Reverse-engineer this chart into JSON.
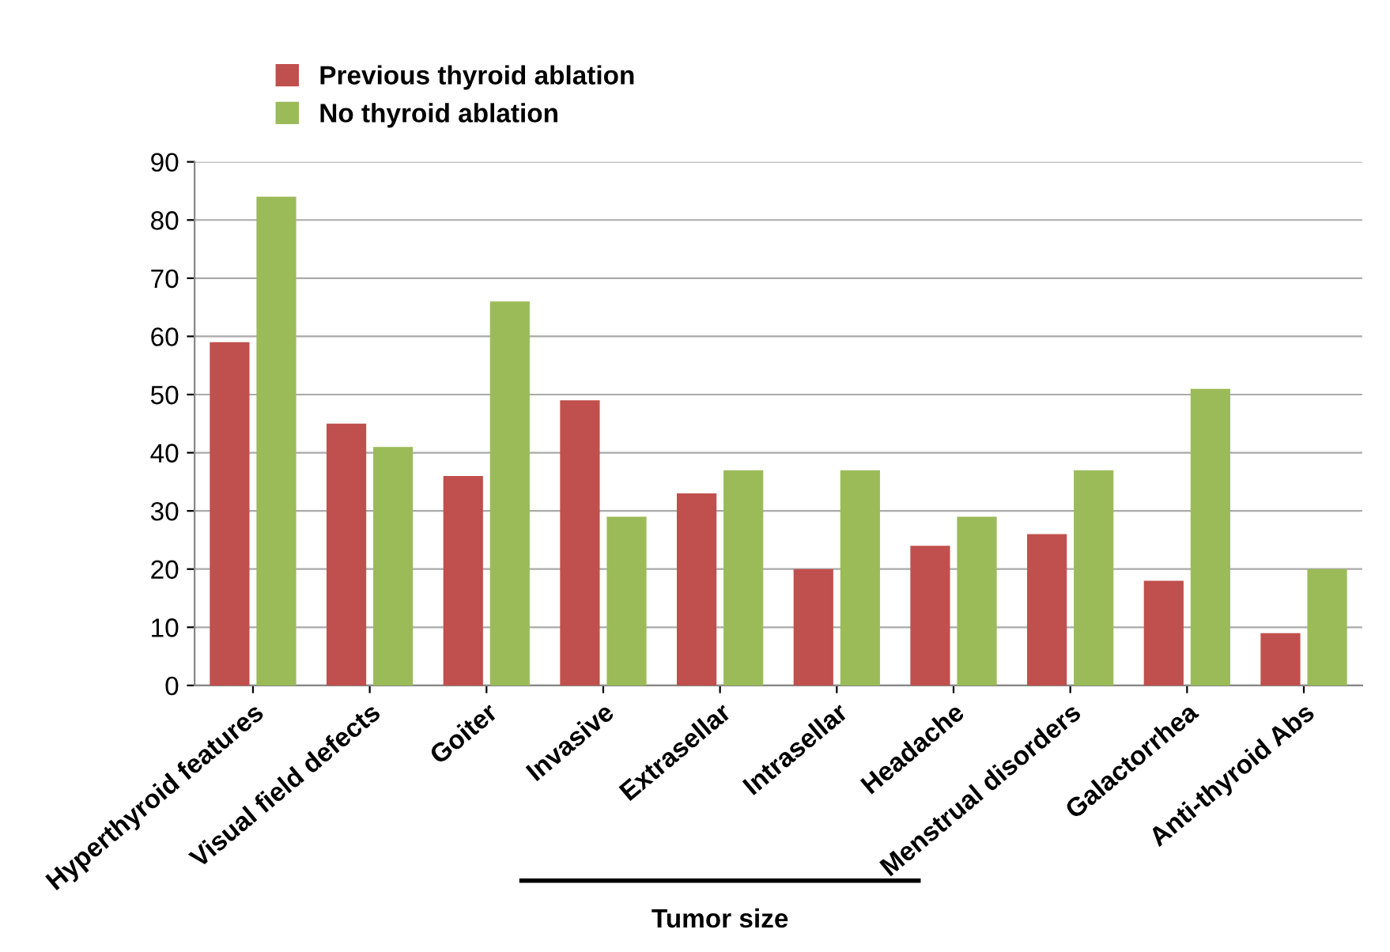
{
  "chart_data": {
    "type": "bar",
    "categories": [
      "Hyperthyroid features",
      "Visual field defects",
      "Goiter",
      "Invasive",
      "Extrasellar",
      "Intrasellar",
      "Headache",
      "Menstrual disorders",
      "Galactorrhea",
      "Anti-thyroid Abs"
    ],
    "series": [
      {
        "name": "Previous thyroid ablation",
        "color": "#c0504d",
        "values": [
          59,
          45,
          36,
          49,
          33,
          20,
          24,
          26,
          18,
          9
        ]
      },
      {
        "name": "No thyroid ablation",
        "color": "#9bbb59",
        "values": [
          84,
          41,
          66,
          29,
          37,
          37,
          29,
          37,
          51,
          20
        ]
      }
    ],
    "ylim": [
      0,
      90
    ],
    "yticks": [
      0,
      10,
      20,
      30,
      40,
      50,
      60,
      70,
      80,
      90
    ],
    "grid": "y",
    "legend": "top left",
    "annotations": [
      "Tumor size"
    ]
  }
}
